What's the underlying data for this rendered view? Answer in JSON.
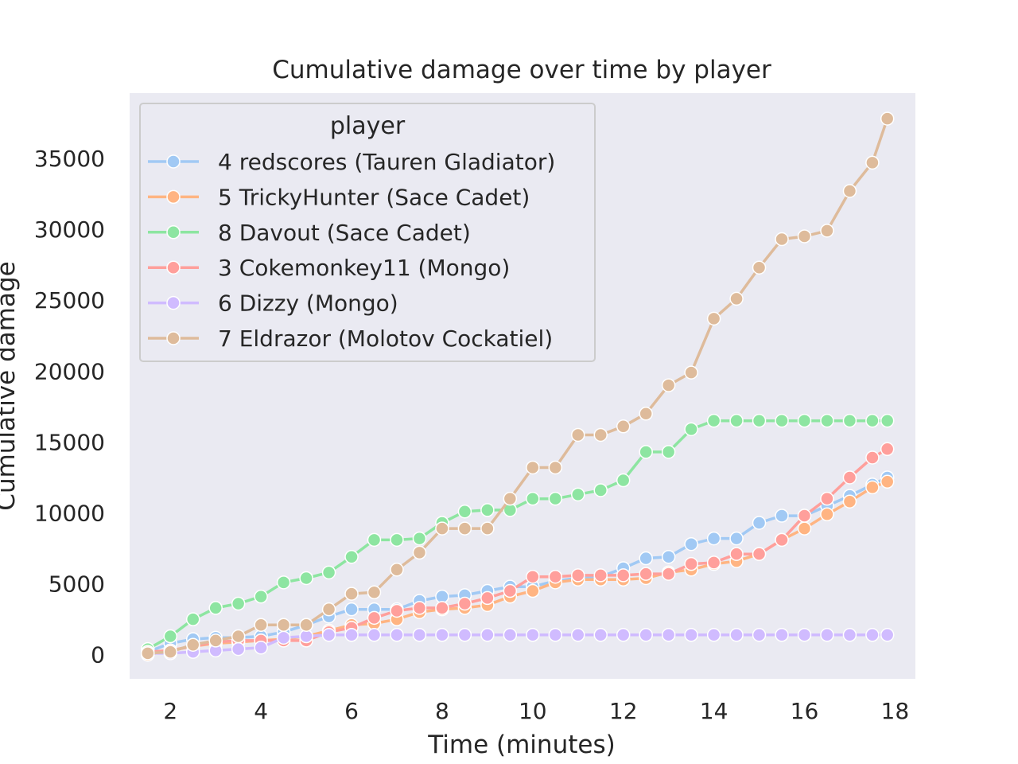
{
  "chart_data": {
    "type": "line",
    "title": "Cumulative damage over time by player",
    "xlabel": "Time (minutes)",
    "ylabel": "Cumulative damage",
    "xlim": [
      1.1,
      18.45
    ],
    "ylim": [
      -1700,
      39600
    ],
    "xticks": [
      2,
      4,
      6,
      8,
      10,
      12,
      14,
      16,
      18
    ],
    "yticks": [
      0,
      5000,
      10000,
      15000,
      20000,
      25000,
      30000,
      35000
    ],
    "grid": false,
    "legend": {
      "title": "player",
      "placement": "top-left"
    },
    "x": [
      1.5,
      2,
      2.5,
      3,
      3.5,
      4,
      4.5,
      5,
      5.5,
      6,
      6.5,
      7,
      7.5,
      8,
      8.5,
      9,
      9.5,
      10,
      10.5,
      11,
      11.5,
      12,
      12.5,
      13,
      13.5,
      14,
      14.5,
      15,
      15.5,
      16,
      16.5,
      17,
      17.5,
      17.83
    ],
    "series": [
      {
        "name": "4 redscores (Tauren Gladiator)",
        "color": "#a1c9f4",
        "values": [
          200,
          800,
          1100,
          1200,
          1200,
          1300,
          1600,
          2100,
          2700,
          3200,
          3200,
          3200,
          3800,
          4100,
          4200,
          4500,
          4800,
          4800,
          5200,
          5400,
          5500,
          6100,
          6800,
          6900,
          7800,
          8200,
          8200,
          9300,
          9800,
          9800,
          10500,
          11200,
          12000,
          12500
        ]
      },
      {
        "name": "5 TrickyHunter (Sace Cadet)",
        "color": "#ffb482",
        "values": [
          0,
          300,
          600,
          800,
          900,
          1000,
          1100,
          1300,
          1700,
          2100,
          2200,
          2500,
          3000,
          3200,
          3300,
          3500,
          4100,
          4500,
          5100,
          5300,
          5300,
          5300,
          5400,
          5800,
          6000,
          6400,
          6600,
          7100,
          8100,
          8900,
          9900,
          10800,
          11800,
          12200
        ]
      },
      {
        "name": "8 Davout (Sace Cadet)",
        "color": "#8de5a1",
        "values": [
          400,
          1300,
          2500,
          3300,
          3600,
          4100,
          5100,
          5400,
          5800,
          6900,
          8100,
          8100,
          8200,
          9300,
          10100,
          10200,
          10200,
          11000,
          11000,
          11300,
          11600,
          12300,
          14300,
          14300,
          15900,
          16500,
          16500,
          16500,
          16500,
          16500,
          16500,
          16500,
          16500,
          16500
        ]
      },
      {
        "name": "3 Cokemonkey11 (Mongo)",
        "color": "#ff9f9b",
        "values": [
          200,
          300,
          600,
          900,
          1000,
          1000,
          1000,
          1000,
          1600,
          1900,
          2600,
          3100,
          3300,
          3300,
          3600,
          4000,
          4500,
          5500,
          5500,
          5600,
          5600,
          5600,
          5700,
          5700,
          6400,
          6500,
          7100,
          7100,
          8100,
          9800,
          11000,
          12500,
          13900,
          14500
        ]
      },
      {
        "name": "6 Dizzy (Mongo)",
        "color": "#d0bbff",
        "values": [
          100,
          100,
          200,
          300,
          400,
          500,
          1200,
          1300,
          1400,
          1400,
          1400,
          1400,
          1400,
          1400,
          1400,
          1400,
          1400,
          1400,
          1400,
          1400,
          1400,
          1400,
          1400,
          1400,
          1400,
          1400,
          1400,
          1400,
          1400,
          1400,
          1400,
          1400,
          1400,
          1400
        ]
      },
      {
        "name": "7 Eldrazor (Molotov Cockatiel)",
        "color": "#debb9b",
        "values": [
          100,
          200,
          700,
          1000,
          1300,
          2100,
          2100,
          2100,
          3200,
          4300,
          4400,
          6000,
          7200,
          8900,
          8900,
          8900,
          11000,
          13200,
          13200,
          15500,
          15500,
          16100,
          17000,
          19000,
          19900,
          23700,
          25100,
          27300,
          29300,
          29500,
          29900,
          32700,
          34700,
          37800
        ]
      }
    ]
  }
}
